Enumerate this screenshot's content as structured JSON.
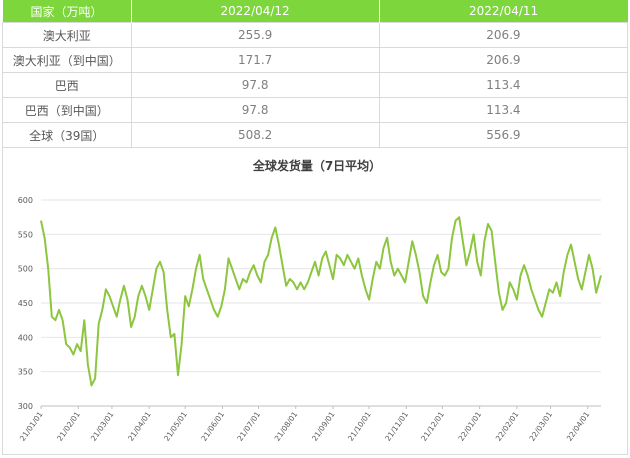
{
  "table": {
    "headers": [
      "国家（万吨）",
      "2022/04/12",
      "2022/04/11"
    ],
    "rows": [
      {
        "label": "澳大利亚",
        "v1": "255.9",
        "v2": "206.9"
      },
      {
        "label": "澳大利亚（到中国）",
        "v1": "171.7",
        "v2": "206.9"
      },
      {
        "label": "巴西",
        "v1": "97.8",
        "v2": "113.4"
      },
      {
        "label": "巴西（到中国）",
        "v1": "97.8",
        "v2": "113.4"
      },
      {
        "label": "全球（39国）",
        "v1": "508.2",
        "v2": "556.9"
      }
    ]
  },
  "colors": {
    "header_bg": "#7dd63c",
    "line": "#8cc63f",
    "grid": "#e6e6e6"
  },
  "chart_data": {
    "type": "line",
    "title": "全球发货量（7日平均）",
    "xlabel": "",
    "ylabel": "",
    "ylim": [
      300,
      600
    ],
    "yticks": [
      300,
      350,
      400,
      450,
      500,
      550,
      600
    ],
    "grid": true,
    "xticks": [
      "21/01/01",
      "21/02/01",
      "21/03/01",
      "21/04/01",
      "21/05/01",
      "21/06/01",
      "21/07/01",
      "21/08/01",
      "21/09/01",
      "21/10/01",
      "21/11/01",
      "21/12/01",
      "22/01/01",
      "22/02/01",
      "22/03/01",
      "22/04/01"
    ],
    "series": [
      {
        "name": "",
        "x_start": "2021-01-01",
        "x_end": "2022-04-12",
        "keypoints": [
          [
            "2021-01-01",
            570
          ],
          [
            "2021-01-04",
            545
          ],
          [
            "2021-01-07",
            500
          ],
          [
            "2021-01-10",
            430
          ],
          [
            "2021-01-13",
            425
          ],
          [
            "2021-01-16",
            440
          ],
          [
            "2021-01-19",
            425
          ],
          [
            "2021-01-22",
            390
          ],
          [
            "2021-01-25",
            385
          ],
          [
            "2021-01-28",
            375
          ],
          [
            "2021-01-31",
            390
          ],
          [
            "2021-02-03",
            380
          ],
          [
            "2021-02-06",
            425
          ],
          [
            "2021-02-09",
            360
          ],
          [
            "2021-02-12",
            330
          ],
          [
            "2021-02-15",
            340
          ],
          [
            "2021-02-18",
            420
          ],
          [
            "2021-02-21",
            440
          ],
          [
            "2021-02-24",
            470
          ],
          [
            "2021-02-27",
            460
          ],
          [
            "2021-03-02",
            445
          ],
          [
            "2021-03-05",
            430
          ],
          [
            "2021-03-08",
            455
          ],
          [
            "2021-03-11",
            475
          ],
          [
            "2021-03-14",
            455
          ],
          [
            "2021-03-17",
            415
          ],
          [
            "2021-03-20",
            430
          ],
          [
            "2021-03-23",
            460
          ],
          [
            "2021-03-26",
            475
          ],
          [
            "2021-03-29",
            460
          ],
          [
            "2021-04-01",
            440
          ],
          [
            "2021-04-04",
            470
          ],
          [
            "2021-04-07",
            500
          ],
          [
            "2021-04-10",
            510
          ],
          [
            "2021-04-13",
            495
          ],
          [
            "2021-04-16",
            440
          ],
          [
            "2021-04-19",
            400
          ],
          [
            "2021-04-22",
            405
          ],
          [
            "2021-04-25",
            345
          ],
          [
            "2021-04-28",
            390
          ],
          [
            "2021-05-01",
            460
          ],
          [
            "2021-05-04",
            445
          ],
          [
            "2021-05-07",
            470
          ],
          [
            "2021-05-10",
            500
          ],
          [
            "2021-05-13",
            520
          ],
          [
            "2021-05-16",
            485
          ],
          [
            "2021-05-19",
            470
          ],
          [
            "2021-05-22",
            455
          ],
          [
            "2021-05-25",
            440
          ],
          [
            "2021-05-28",
            430
          ],
          [
            "2021-05-31",
            445
          ],
          [
            "2021-06-03",
            470
          ],
          [
            "2021-06-06",
            515
          ],
          [
            "2021-06-09",
            500
          ],
          [
            "2021-06-12",
            485
          ],
          [
            "2021-06-15",
            470
          ],
          [
            "2021-06-18",
            485
          ],
          [
            "2021-06-21",
            480
          ],
          [
            "2021-06-24",
            495
          ],
          [
            "2021-06-27",
            505
          ],
          [
            "2021-06-30",
            490
          ],
          [
            "2021-07-03",
            480
          ],
          [
            "2021-07-06",
            510
          ],
          [
            "2021-07-09",
            520
          ],
          [
            "2021-07-12",
            545
          ],
          [
            "2021-07-15",
            560
          ],
          [
            "2021-07-18",
            535
          ],
          [
            "2021-07-21",
            505
          ],
          [
            "2021-07-24",
            475
          ],
          [
            "2021-07-27",
            485
          ],
          [
            "2021-07-30",
            480
          ],
          [
            "2021-08-02",
            470
          ],
          [
            "2021-08-05",
            480
          ],
          [
            "2021-08-08",
            470
          ],
          [
            "2021-08-11",
            480
          ],
          [
            "2021-08-14",
            495
          ],
          [
            "2021-08-17",
            510
          ],
          [
            "2021-08-20",
            490
          ],
          [
            "2021-08-23",
            515
          ],
          [
            "2021-08-26",
            525
          ],
          [
            "2021-08-29",
            505
          ],
          [
            "2021-09-01",
            485
          ],
          [
            "2021-09-04",
            520
          ],
          [
            "2021-09-07",
            515
          ],
          [
            "2021-09-10",
            505
          ],
          [
            "2021-09-13",
            520
          ],
          [
            "2021-09-16",
            510
          ],
          [
            "2021-09-19",
            500
          ],
          [
            "2021-09-22",
            515
          ],
          [
            "2021-09-25",
            490
          ],
          [
            "2021-09-28",
            470
          ],
          [
            "2021-10-01",
            455
          ],
          [
            "2021-10-04",
            485
          ],
          [
            "2021-10-07",
            510
          ],
          [
            "2021-10-10",
            500
          ],
          [
            "2021-10-13",
            530
          ],
          [
            "2021-10-16",
            545
          ],
          [
            "2021-10-19",
            510
          ],
          [
            "2021-10-22",
            490
          ],
          [
            "2021-10-25",
            500
          ],
          [
            "2021-10-28",
            490
          ],
          [
            "2021-10-31",
            480
          ],
          [
            "2021-11-03",
            510
          ],
          [
            "2021-11-06",
            540
          ],
          [
            "2021-11-09",
            520
          ],
          [
            "2021-11-12",
            495
          ],
          [
            "2021-11-15",
            460
          ],
          [
            "2021-11-18",
            450
          ],
          [
            "2021-11-21",
            480
          ],
          [
            "2021-11-24",
            505
          ],
          [
            "2021-11-27",
            520
          ],
          [
            "2021-11-30",
            495
          ],
          [
            "2021-12-03",
            490
          ],
          [
            "2021-12-06",
            500
          ],
          [
            "2021-12-09",
            545
          ],
          [
            "2021-12-12",
            570
          ],
          [
            "2021-12-15",
            575
          ],
          [
            "2021-12-18",
            540
          ],
          [
            "2021-12-21",
            505
          ],
          [
            "2021-12-24",
            525
          ],
          [
            "2021-12-27",
            550
          ],
          [
            "2021-12-30",
            510
          ],
          [
            "2022-01-02",
            490
          ],
          [
            "2022-01-05",
            540
          ],
          [
            "2022-01-08",
            565
          ],
          [
            "2022-01-11",
            555
          ],
          [
            "2022-01-14",
            510
          ],
          [
            "2022-01-17",
            465
          ],
          [
            "2022-01-20",
            440
          ],
          [
            "2022-01-23",
            450
          ],
          [
            "2022-01-26",
            480
          ],
          [
            "2022-01-29",
            470
          ],
          [
            "2022-02-01",
            455
          ],
          [
            "2022-02-04",
            490
          ],
          [
            "2022-02-07",
            505
          ],
          [
            "2022-02-10",
            490
          ],
          [
            "2022-02-13",
            470
          ],
          [
            "2022-02-16",
            455
          ],
          [
            "2022-02-19",
            440
          ],
          [
            "2022-02-22",
            430
          ],
          [
            "2022-02-25",
            450
          ],
          [
            "2022-02-28",
            470
          ],
          [
            "2022-03-03",
            465
          ],
          [
            "2022-03-06",
            480
          ],
          [
            "2022-03-09",
            460
          ],
          [
            "2022-03-12",
            495
          ],
          [
            "2022-03-15",
            520
          ],
          [
            "2022-03-18",
            535
          ],
          [
            "2022-03-21",
            510
          ],
          [
            "2022-03-24",
            485
          ],
          [
            "2022-03-27",
            470
          ],
          [
            "2022-03-30",
            495
          ],
          [
            "2022-04-02",
            520
          ],
          [
            "2022-04-05",
            500
          ],
          [
            "2022-04-08",
            465
          ],
          [
            "2022-04-12",
            490
          ]
        ]
      }
    ]
  }
}
